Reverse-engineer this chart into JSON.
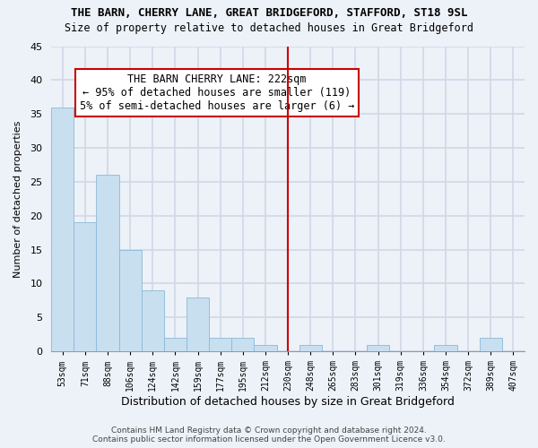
{
  "title": "THE BARN, CHERRY LANE, GREAT BRIDGEFORD, STAFFORD, ST18 9SL",
  "subtitle": "Size of property relative to detached houses in Great Bridgeford",
  "xlabel": "Distribution of detached houses by size in Great Bridgeford",
  "ylabel": "Number of detached properties",
  "footer_line1": "Contains HM Land Registry data © Crown copyright and database right 2024.",
  "footer_line2": "Contains public sector information licensed under the Open Government Licence v3.0.",
  "bin_labels": [
    "53sqm",
    "71sqm",
    "88sqm",
    "106sqm",
    "124sqm",
    "142sqm",
    "159sqm",
    "177sqm",
    "195sqm",
    "212sqm",
    "230sqm",
    "248sqm",
    "265sqm",
    "283sqm",
    "301sqm",
    "319sqm",
    "336sqm",
    "354sqm",
    "372sqm",
    "389sqm",
    "407sqm"
  ],
  "bar_values": [
    36,
    19,
    26,
    15,
    9,
    2,
    8,
    2,
    2,
    1,
    0,
    1,
    0,
    0,
    1,
    0,
    0,
    1,
    0,
    2,
    0
  ],
  "bar_color": "#c8dff0",
  "bar_edge_color": "#8ab8d8",
  "vline_color": "#cc0000",
  "annotation_title": "THE BARN CHERRY LANE: 222sqm",
  "annotation_line1": "← 95% of detached houses are smaller (119)",
  "annotation_line2": "5% of semi-detached houses are larger (6) →",
  "ylim": [
    0,
    45
  ],
  "yticks": [
    0,
    5,
    10,
    15,
    20,
    25,
    30,
    35,
    40,
    45
  ],
  "bg_color": "#edf2f8",
  "grid_color": "#d0d8e8"
}
